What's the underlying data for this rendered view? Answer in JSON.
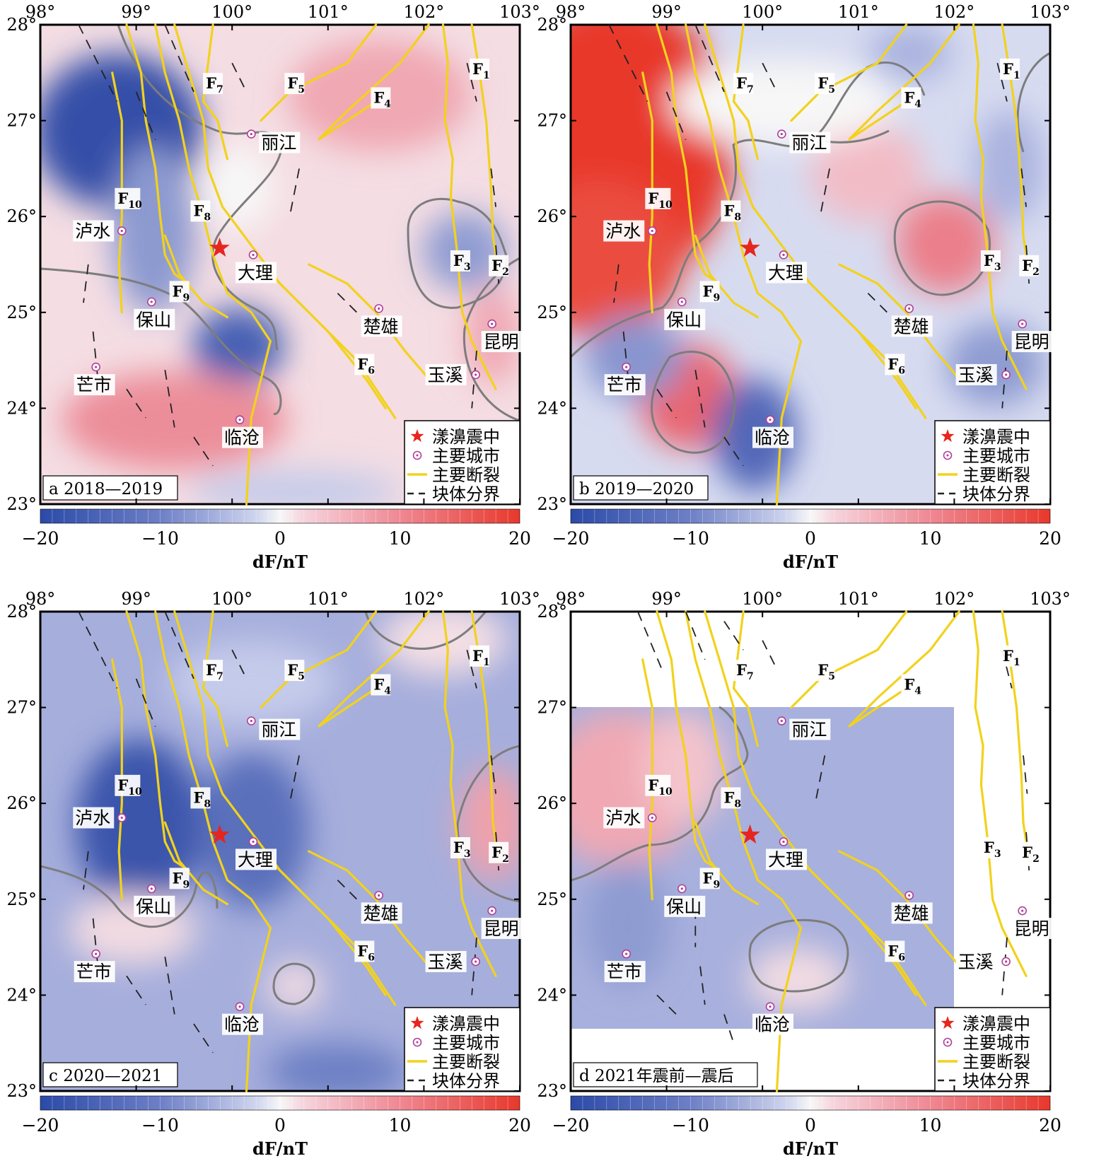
{
  "panels": [
    {
      "id": "a",
      "label": "a  2018—2019",
      "mode": "a"
    },
    {
      "id": "b",
      "label": "b  2019—2020",
      "mode": "b"
    },
    {
      "id": "c",
      "label": "c  2020—2021",
      "mode": "c"
    },
    {
      "id": "d",
      "label": "d  2021年震前—震后",
      "mode": "d"
    }
  ],
  "lon_ticks": [
    "98°",
    "99°",
    "100°",
    "101°",
    "102°",
    "103°"
  ],
  "lat_ticks": [
    "28°",
    "27°",
    "26°",
    "25°",
    "24°",
    "23°"
  ],
  "lon_range": [
    98,
    103
  ],
  "lat_range": [
    23,
    28
  ],
  "colorbar": {
    "ticks": [
      "−20",
      "−10",
      "0",
      "10",
      "20"
    ],
    "min": -20,
    "max": 20,
    "label": "dF/nT",
    "colors": {
      "low": "#2b4aa8",
      "mid": "#f7f7f7",
      "high": "#e8382b"
    }
  },
  "legend": {
    "epicenter": "漾濞震中",
    "city": "主要城市",
    "fault": "主要断裂",
    "boundary": "块体分界"
  },
  "cities": [
    {
      "name": "丽江",
      "lon": 100.2,
      "lat": 26.86
    },
    {
      "name": "泸水",
      "lon": 98.85,
      "lat": 25.85
    },
    {
      "name": "大理",
      "lon": 100.22,
      "lat": 25.6
    },
    {
      "name": "保山",
      "lon": 99.16,
      "lat": 25.11
    },
    {
      "name": "楚雄",
      "lon": 101.53,
      "lat": 25.04
    },
    {
      "name": "昆明",
      "lon": 102.71,
      "lat": 24.88
    },
    {
      "name": "芒市",
      "lon": 98.58,
      "lat": 24.43
    },
    {
      "name": "玉溪",
      "lon": 102.54,
      "lat": 24.35
    },
    {
      "name": "临沧",
      "lon": 100.08,
      "lat": 23.88
    }
  ],
  "epicenter": {
    "lon": 99.87,
    "lat": 25.67
  },
  "faults": [
    {
      "name": "F",
      "sub": "1",
      "lon": 102.58,
      "lat": 27.5
    },
    {
      "name": "F",
      "sub": "2",
      "lon": 102.78,
      "lat": 25.45
    },
    {
      "name": "F",
      "sub": "3",
      "lon": 102.38,
      "lat": 25.5
    },
    {
      "name": "F",
      "sub": "4",
      "lon": 101.55,
      "lat": 27.2
    },
    {
      "name": "F",
      "sub": "5",
      "lon": 100.65,
      "lat": 27.35
    },
    {
      "name": "F",
      "sub": "6",
      "lon": 101.38,
      "lat": 24.42
    },
    {
      "name": "F",
      "sub": "7",
      "lon": 99.8,
      "lat": 27.35
    },
    {
      "name": "F",
      "sub": "8",
      "lon": 99.67,
      "lat": 26.02
    },
    {
      "name": "F",
      "sub": "9",
      "lon": 99.45,
      "lat": 25.18
    },
    {
      "name": "F",
      "sub": "10",
      "lon": 98.88,
      "lat": 26.15
    }
  ],
  "colors": {
    "fault": "#f2d21c",
    "boundary": "#222222",
    "contour": "#7d7d7d",
    "epicenter": "#e5261f",
    "city": "#b0409a"
  }
}
